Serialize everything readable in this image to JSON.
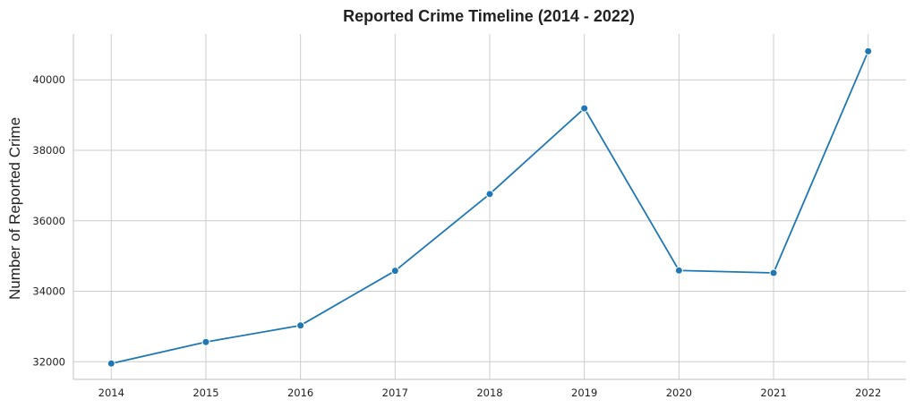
{
  "chart_data": {
    "type": "line",
    "title": "Reported Crime Timeline (2014 - 2022)",
    "xlabel": "",
    "ylabel": "Number of Reported Crime",
    "x": [
      2014,
      2015,
      2016,
      2017,
      2018,
      2019,
      2020,
      2021,
      2022
    ],
    "series": [
      {
        "values": [
          31950,
          32560,
          33030,
          34580,
          36760,
          39190,
          34590,
          34520,
          40810
        ],
        "color": "#1f77b4"
      }
    ],
    "xlim": [
      2013.6,
      2022.4
    ],
    "ylim": [
      31500,
      41300
    ],
    "yticks": [
      32000,
      34000,
      36000,
      38000,
      40000
    ],
    "grid": true,
    "marker": "circle",
    "legend": "none"
  }
}
